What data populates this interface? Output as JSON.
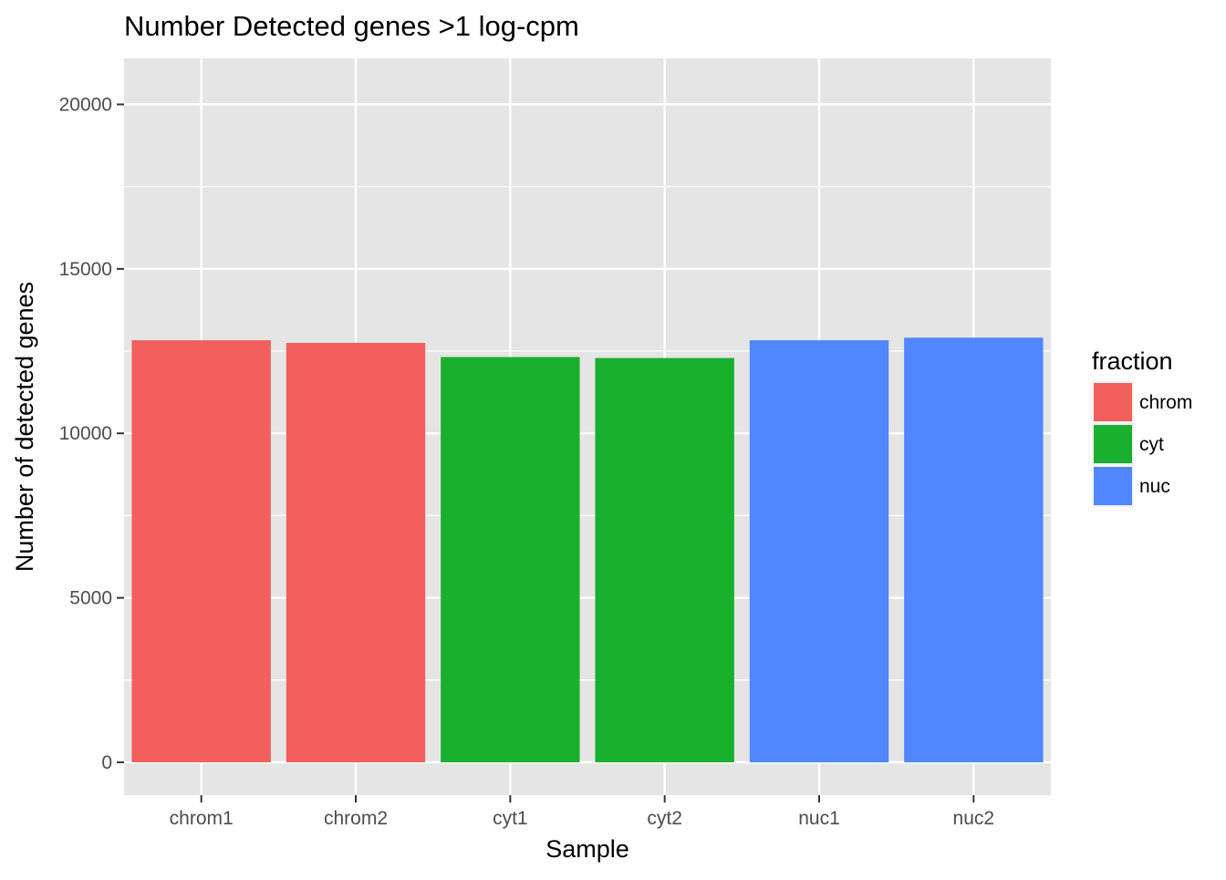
{
  "chart_data": {
    "type": "bar",
    "title": "Number Detected genes >1 log-cpm",
    "xlabel": "Sample",
    "ylabel": "Number of detected genes",
    "categories": [
      "chrom1",
      "chrom2",
      "cyt1",
      "cyt2",
      "nuc1",
      "nuc2"
    ],
    "values": [
      12830,
      12750,
      12320,
      12290,
      12830,
      12910
    ],
    "fill_groups": [
      "chrom",
      "chrom",
      "cyt",
      "cyt",
      "nuc",
      "nuc"
    ],
    "ylim": [
      -1000,
      21400
    ],
    "yticks": [
      0,
      5000,
      10000,
      15000,
      20000
    ],
    "ytick_labels": [
      "0",
      "5000",
      "10000",
      "15000",
      "20000"
    ],
    "grid": true,
    "legend": {
      "title": "fraction",
      "position": "right",
      "entries": [
        {
          "label": "chrom",
          "color": "#F25F5C"
        },
        {
          "label": "cyt",
          "color": "#19B02E"
        },
        {
          "label": "nuc",
          "color": "#5086FF"
        }
      ]
    },
    "colors": {
      "panel_background": "#E5E5E5",
      "gridline": "#FFFFFF",
      "text": "#000000",
      "tick_text": "#4D4D4D"
    }
  }
}
